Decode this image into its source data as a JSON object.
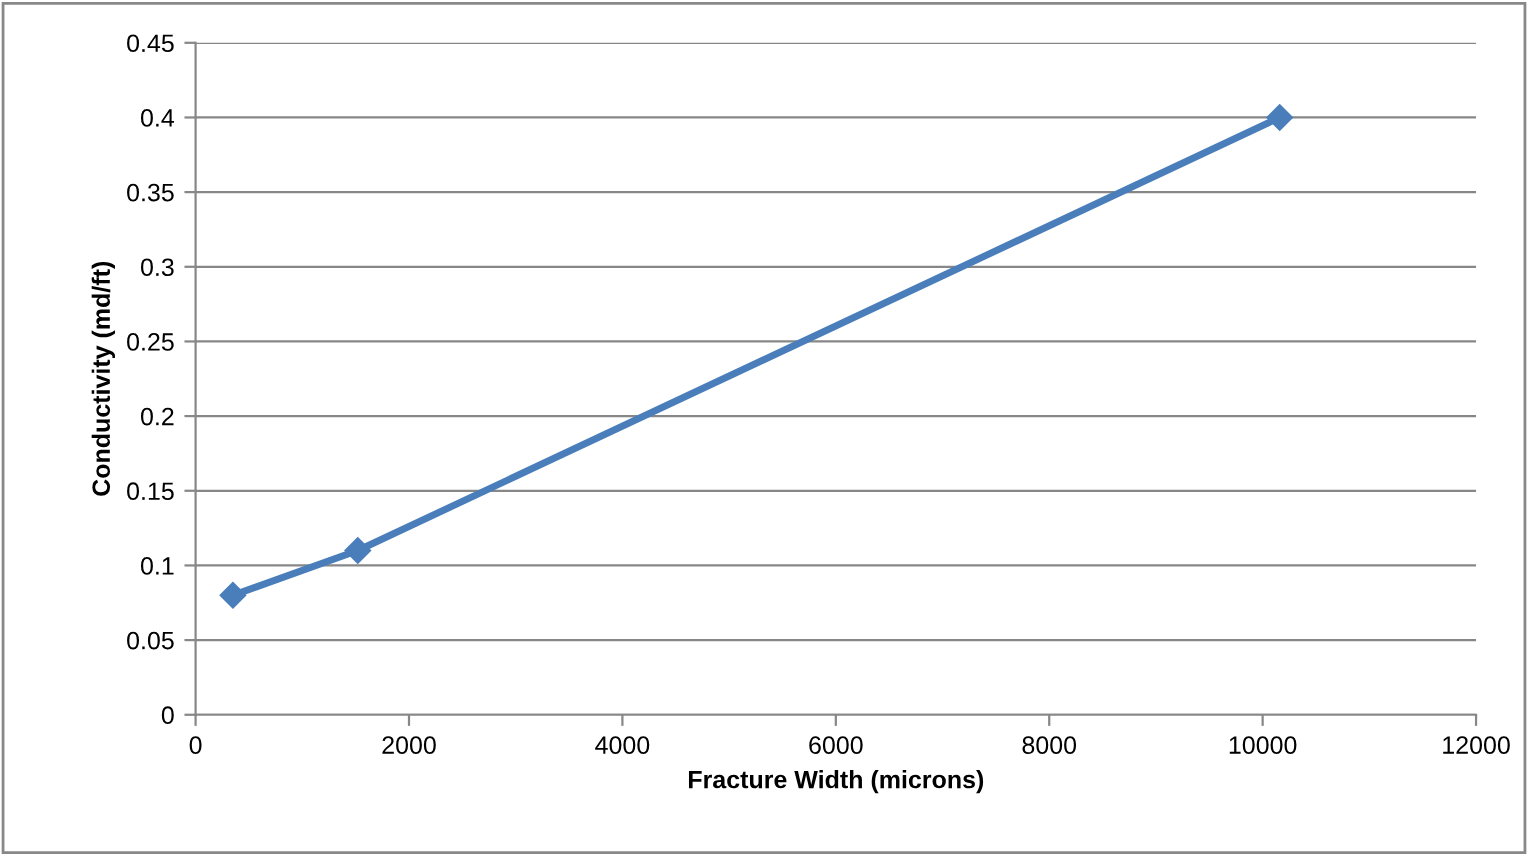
{
  "chart_data": {
    "type": "line",
    "xlabel": "Fracture Width (microns)",
    "ylabel": "Conductivity (md/ft)",
    "x": [
      350,
      1520,
      10160
    ],
    "series": [
      {
        "color": "#4a7ebb",
        "values": [
          0.08,
          0.11,
          0.4
        ]
      }
    ],
    "xlim": [
      0,
      12000
    ],
    "xticks": [
      0,
      2000,
      4000,
      6000,
      8000,
      10000,
      12000
    ],
    "ylim": [
      0,
      0.45
    ],
    "yticks": [
      0,
      0.05,
      0.1,
      0.15,
      0.2,
      0.25,
      0.3,
      0.35,
      0.4,
      0.45
    ],
    "grid": "y",
    "marker": "diamond",
    "line_style": "solid"
  }
}
